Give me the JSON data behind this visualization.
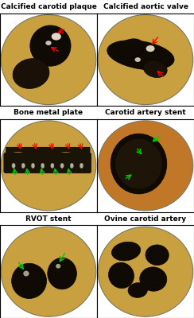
{
  "title_rows": [
    [
      "Calcified carotid plaque",
      "Calcified aortic valve"
    ],
    [
      "Bone metal plate",
      "Carotid artery stent"
    ],
    [
      "RVOT stent",
      "Ovine carotid artery"
    ]
  ],
  "bg_color": "#ffffff",
  "title_fontsize": 6.5,
  "title_fontweight": "bold",
  "border_color": "#000000",
  "figure_width": 2.44,
  "figure_height": 4.0,
  "dpi": 100,
  "dish_colors": [
    [
      "#c8a040",
      "#c8a040"
    ],
    [
      "#c8a040",
      "#c07828"
    ],
    [
      "#c8a040",
      "#c8a040"
    ]
  ]
}
